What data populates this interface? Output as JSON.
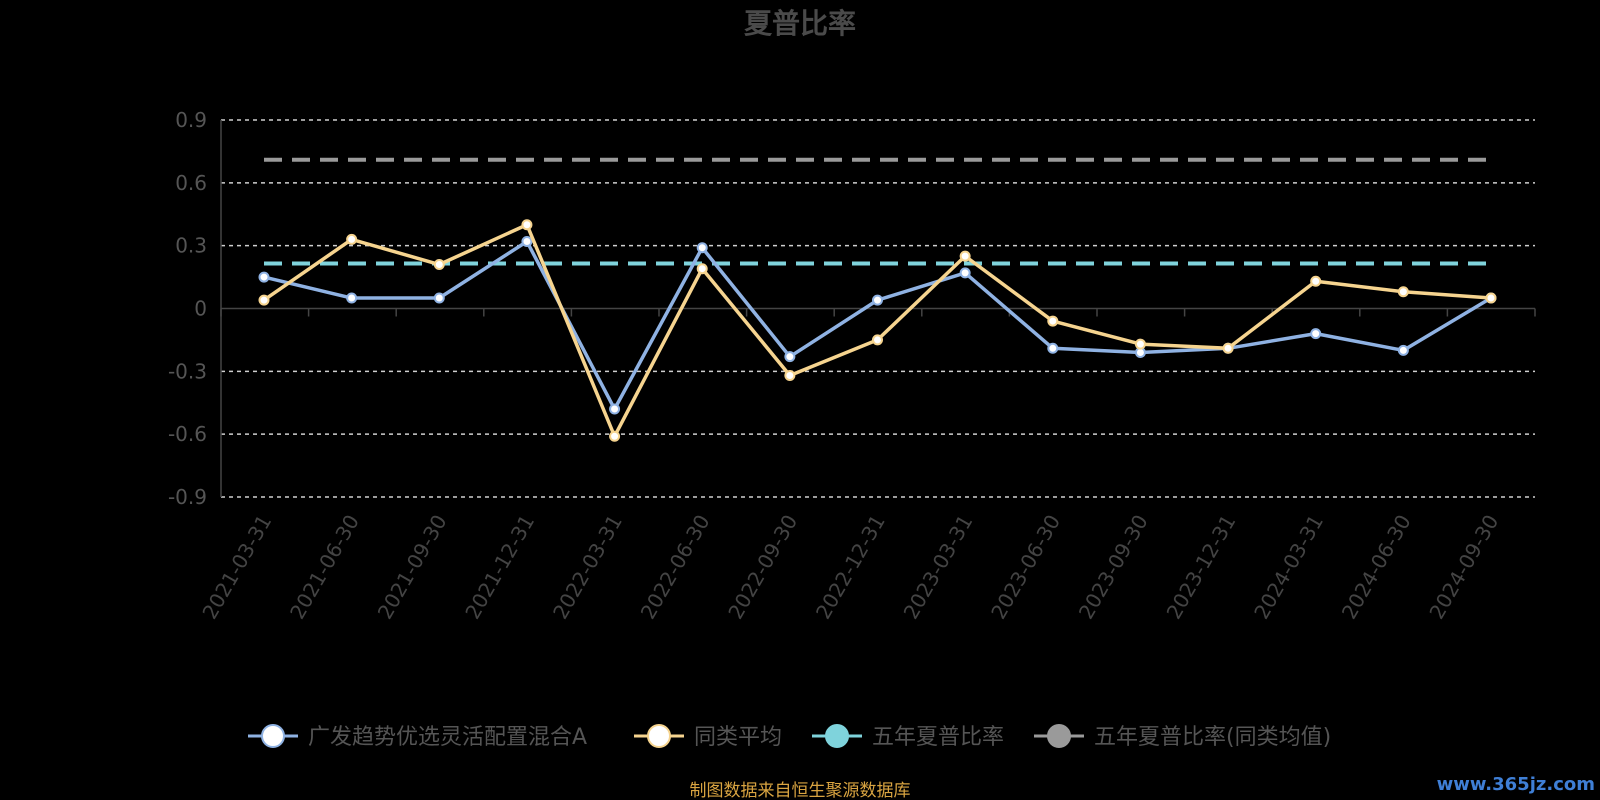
{
  "chart_data": {
    "type": "line",
    "title": "夏普比率",
    "xlabel": "",
    "ylabel": "",
    "ylim": [
      -0.9,
      0.9
    ],
    "yticks": [
      "0.9",
      "0.6",
      "0.3",
      "0",
      "-0.3",
      "-0.6",
      "-0.9"
    ],
    "categories": [
      "2021-03-31",
      "2021-06-30",
      "2021-09-30",
      "2021-12-31",
      "2022-03-31",
      "2022-06-30",
      "2022-09-30",
      "2022-12-31",
      "2023-03-31",
      "2023-06-30",
      "2023-09-30",
      "2023-12-31",
      "2024-03-31",
      "2024-06-30",
      "2024-09-30"
    ],
    "series": [
      {
        "name": "广发趋势优选灵活配置混合A",
        "color": "#8fb2e3",
        "values": [
          0.15,
          0.05,
          0.05,
          0.32,
          -0.48,
          0.29,
          -0.23,
          0.04,
          0.17,
          -0.19,
          -0.21,
          -0.19,
          -0.12,
          -0.2,
          0.05
        ]
      },
      {
        "name": "同类平均",
        "color": "#f6d48f",
        "values": [
          0.04,
          0.33,
          0.21,
          0.4,
          -0.61,
          0.19,
          -0.32,
          -0.15,
          0.25,
          -0.06,
          -0.17,
          -0.19,
          0.13,
          0.08,
          0.05
        ]
      },
      {
        "name": "五年夏普比率",
        "color": "#7fd3dc",
        "reference": 0.215
      },
      {
        "name": "五年夏普比率(同类均值)",
        "color": "#9a9a9a",
        "reference": 0.71
      }
    ],
    "grid": true,
    "legend_position": "bottom"
  },
  "footer": {
    "source": "制图数据来自恒生聚源数据库",
    "watermark": "www.365jz.com"
  }
}
